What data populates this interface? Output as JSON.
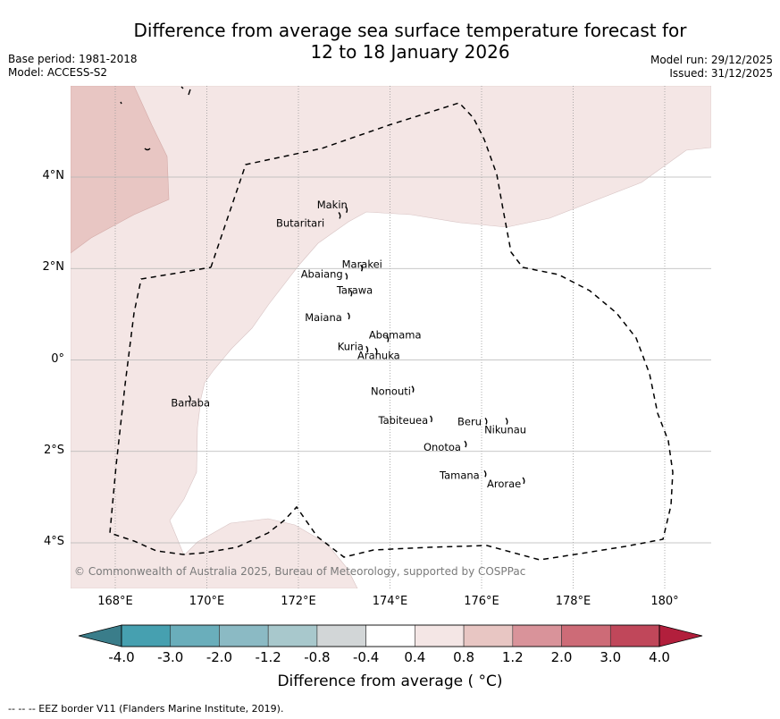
{
  "title": {
    "line1": "Difference from average sea surface temperature forecast for",
    "line2": "12 to 18 January 2026"
  },
  "meta": {
    "base_period": "Base period: 1981-2018",
    "model": "Model: ACCESS-S2",
    "model_run": "Model run: 29/12/2025",
    "issued": "Issued: 31/12/2025"
  },
  "map": {
    "extent": {
      "lon_min": 167,
      "lon_max": 181,
      "lat_min": -5,
      "lat_max": 6
    },
    "lat_ticks": [
      {
        "value": 4,
        "label": "4°N"
      },
      {
        "value": 2,
        "label": "2°N"
      },
      {
        "value": 0,
        "label": "0°"
      },
      {
        "value": -2,
        "label": "2°S"
      },
      {
        "value": -4,
        "label": "4°S"
      }
    ],
    "lon_ticks": [
      {
        "value": 168,
        "label": "168°E"
      },
      {
        "value": 170,
        "label": "170°E"
      },
      {
        "value": 172,
        "label": "172°E"
      },
      {
        "value": 174,
        "label": "174°E"
      },
      {
        "value": 176,
        "label": "176°E"
      },
      {
        "value": 178,
        "label": "178°E"
      },
      {
        "value": 180,
        "label": "180°"
      }
    ],
    "islands": [
      {
        "name": "Makin",
        "lon": 172.95,
        "lat": 3.28
      },
      {
        "name": "Butaritari",
        "lon": 172.8,
        "lat": 3.15
      },
      {
        "name": "Marakei",
        "lon": 173.28,
        "lat": 2.0
      },
      {
        "name": "Abaiang",
        "lon": 172.95,
        "lat": 1.82
      },
      {
        "name": "Tarawa",
        "lon": 173.05,
        "lat": 1.45
      },
      {
        "name": "Maiana",
        "lon": 173.0,
        "lat": 0.95
      },
      {
        "name": "Abemama",
        "lon": 173.85,
        "lat": 0.45
      },
      {
        "name": "Kuria",
        "lon": 173.4,
        "lat": 0.22
      },
      {
        "name": "Aranuka",
        "lon": 173.6,
        "lat": 0.18
      },
      {
        "name": "Banaba",
        "lon": 169.53,
        "lat": -0.86
      },
      {
        "name": "Nonouti",
        "lon": 174.4,
        "lat": -0.65
      },
      {
        "name": "Tabiteuea",
        "lon": 174.8,
        "lat": -1.3
      },
      {
        "name": "Beru",
        "lon": 176.0,
        "lat": -1.35
      },
      {
        "name": "Nikunau",
        "lon": 176.45,
        "lat": -1.35
      },
      {
        "name": "Onotoa",
        "lon": 175.55,
        "lat": -1.85
      },
      {
        "name": "Tamana",
        "lon": 175.98,
        "lat": -2.5
      },
      {
        "name": "Arorae",
        "lon": 176.82,
        "lat": -2.65
      }
    ],
    "copyright": "© Commonwealth of Australia 2025, Bureau of Meteorology, supported by COSPPac"
  },
  "colorbar": {
    "ticks": [
      "-4.0",
      "-3.0",
      "-2.0",
      "-1.2",
      "-0.8",
      "-0.4",
      "0.4",
      "0.8",
      "1.2",
      "2.0",
      "3.0",
      "4.0"
    ],
    "under_color": "#3a7d8a",
    "over_color": "#b21f3c",
    "colors": [
      "#46a0b0",
      "#6aaebb",
      "#8bbac4",
      "#a8c8cc",
      "#d2d6d7",
      "#ffffff",
      "#f4e6e5",
      "#e8c6c3",
      "#d9939a",
      "#cd6b77",
      "#c0475a"
    ],
    "label": "Difference from average ( °C)"
  },
  "legend_note": "--  --  -- EEZ border V11 (Flanders Marine Institute, 2019).",
  "shading": {
    "light_anomaly_color": "#f4e6e5",
    "moderate_anomaly_color": "#e8c6c3",
    "ranges": [
      {
        "range": "0.4 to 0.8",
        "color": "#f4e6e5"
      },
      {
        "range": "0.8 to 1.2",
        "color": "#e8c6c3"
      }
    ]
  }
}
